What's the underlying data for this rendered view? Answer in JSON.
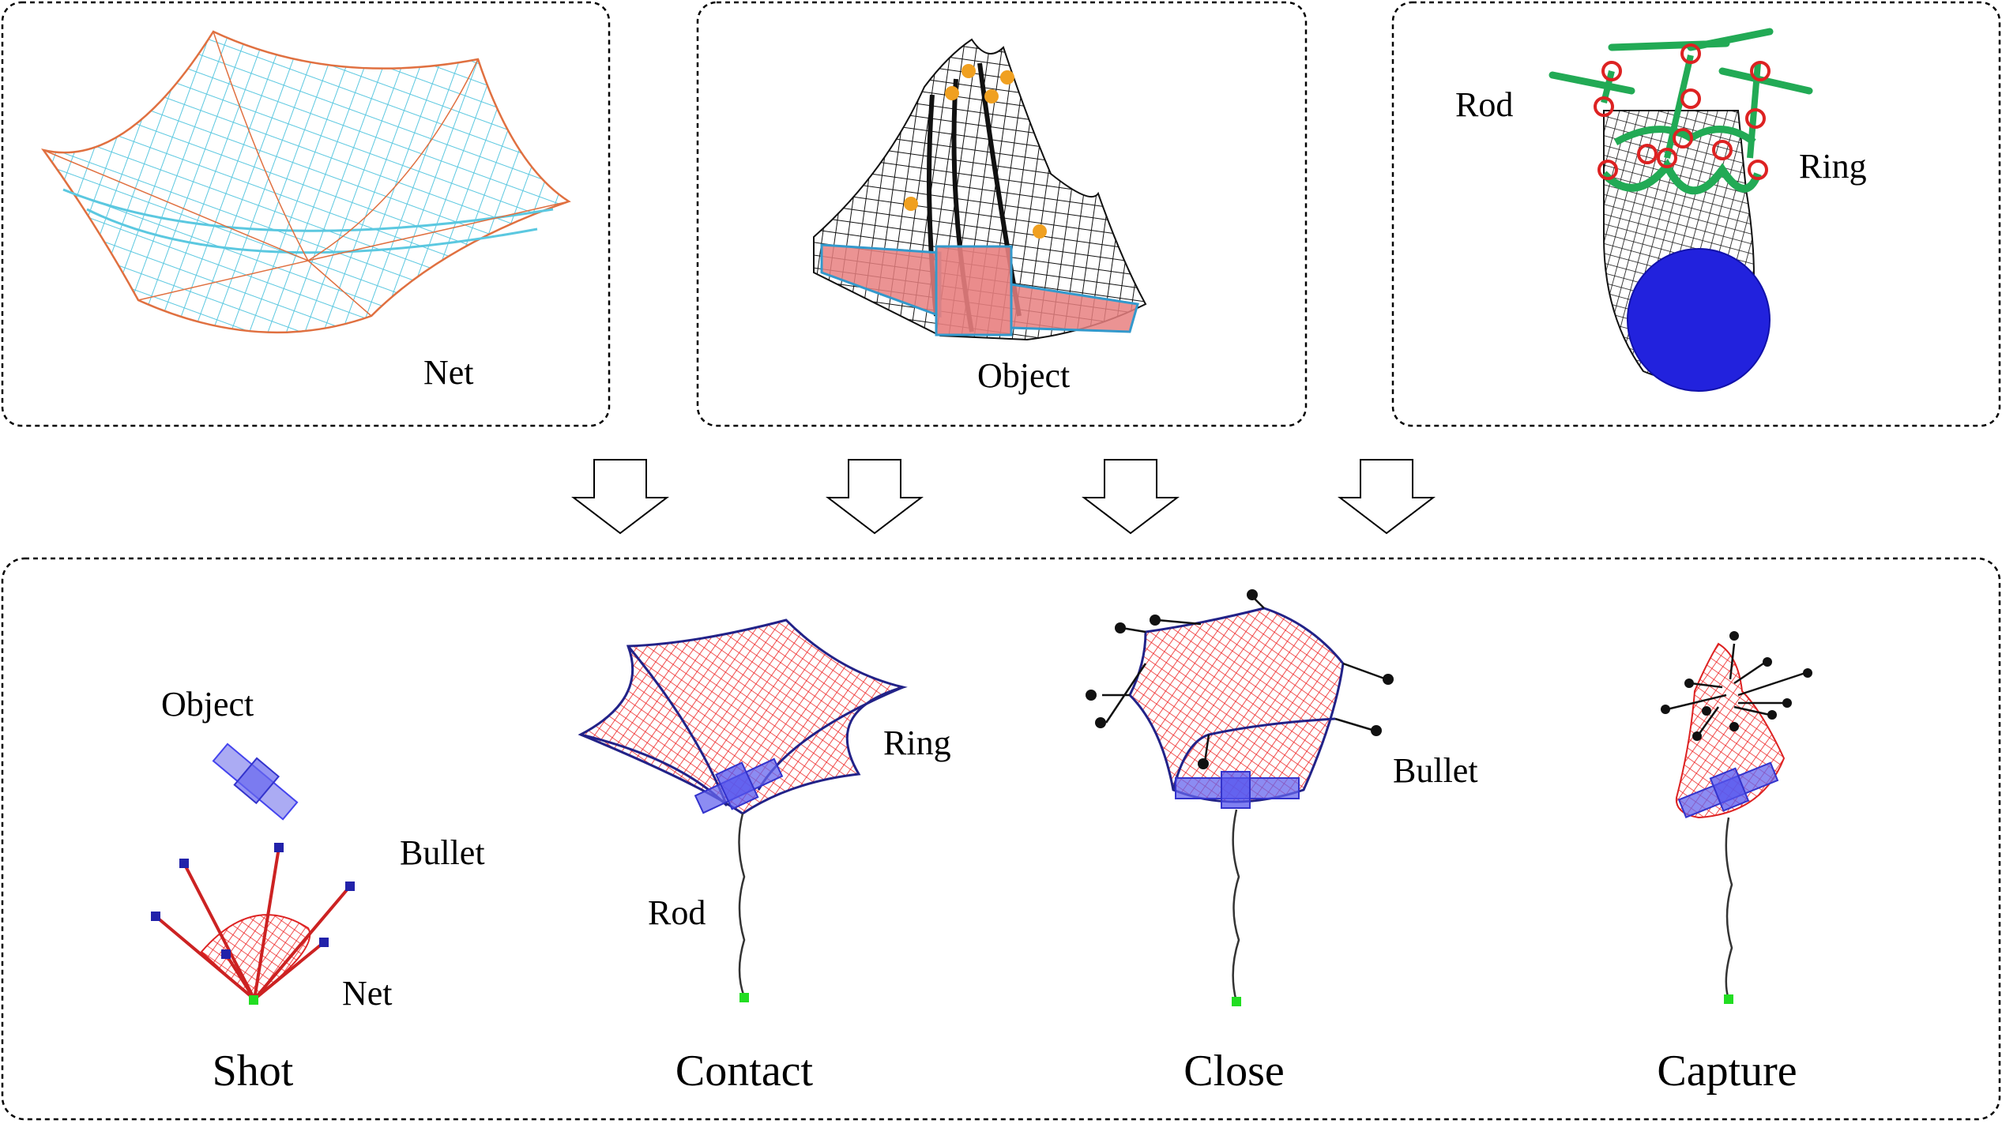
{
  "top_panels": {
    "net": {
      "label": "Net"
    },
    "object": {
      "label": "Object"
    },
    "rod_ring": {
      "rod_label": "Rod",
      "ring_label": "Ring"
    }
  },
  "stages": [
    {
      "title": "Shot",
      "labels": [
        "Object",
        "Bullet",
        "Net"
      ]
    },
    {
      "title": "Contact",
      "labels": [
        "Ring",
        "Rod"
      ]
    },
    {
      "title": "Close",
      "labels": [
        "Bullet"
      ]
    },
    {
      "title": "Capture",
      "labels": []
    }
  ],
  "colors": {
    "net_mesh": "#5bc8e0",
    "object_mesh": "#000000",
    "object_body": "#e88080",
    "ring": "#dd2222",
    "rod": "#22aa55",
    "sphere": "#2222dd",
    "capture_net": "#ee2222",
    "satellite": "#4444ee",
    "anchor": "#22dd22"
  }
}
